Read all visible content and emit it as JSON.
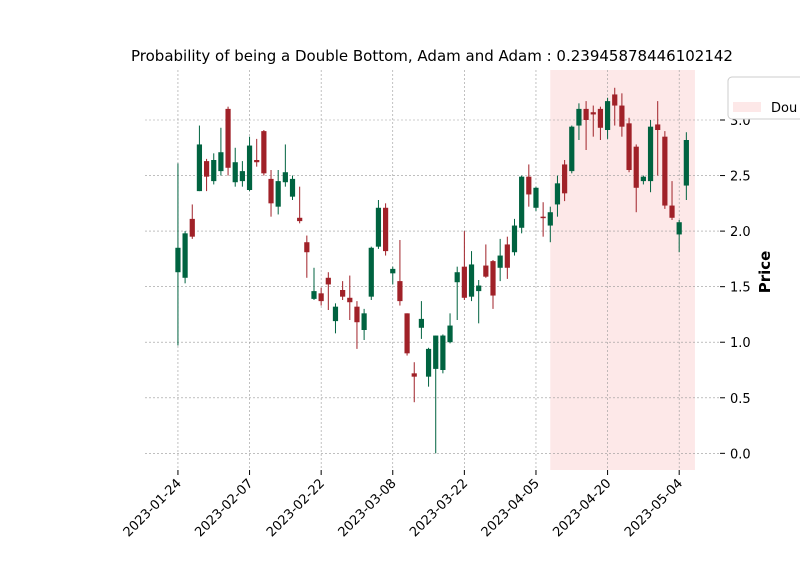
{
  "chart_data": {
    "type": "candlestick",
    "title": "Probability of being a Double Bottom, Adam and Adam : 0.23945878446102142",
    "y_label": "Price",
    "categories": [
      "2023-01-24",
      null,
      null,
      null,
      null,
      null,
      null,
      null,
      null,
      null,
      "2023-02-07",
      null,
      null,
      null,
      null,
      null,
      null,
      null,
      null,
      null,
      "2023-02-22",
      null,
      null,
      null,
      null,
      null,
      null,
      null,
      null,
      null,
      "2023-03-08",
      null,
      null,
      null,
      null,
      null,
      null,
      null,
      null,
      null,
      "2023-03-22",
      null,
      null,
      null,
      null,
      null,
      null,
      null,
      null,
      null,
      "2023-04-05",
      null,
      null,
      null,
      null,
      null,
      null,
      null,
      null,
      null,
      "2023-04-20",
      null,
      null,
      null,
      null,
      null,
      null,
      null,
      null,
      null,
      "2023-05-04",
      null
    ],
    "open": [
      1.63,
      1.58,
      2.11,
      2.36,
      2.63,
      2.45,
      2.54,
      3.1,
      2.44,
      2.45,
      2.37,
      2.64,
      2.9,
      2.47,
      2.22,
      2.44,
      2.31,
      2.12,
      1.9,
      1.39,
      1.44,
      1.58,
      1.19,
      1.47,
      1.4,
      1.32,
      1.11,
      1.41,
      1.86,
      2.21,
      1.62,
      1.55,
      1.26,
      0.72,
      1.13,
      0.69,
      0.76,
      0.75,
      1.0,
      1.54,
      1.68,
      1.41,
      1.46,
      1.69,
      1.73,
      1.67,
      1.88,
      1.81,
      2.03,
      2.49,
      2.21,
      2.13,
      2.05,
      2.24,
      2.6,
      2.54,
      2.95,
      3.1,
      3.07,
      3.1,
      2.91,
      3.23,
      3.13,
      2.97,
      2.76,
      2.45,
      2.45,
      2.96,
      2.85,
      2.23,
      1.97,
      2.41
    ],
    "high": [
      2.61,
      2.0,
      2.24,
      2.95,
      2.65,
      2.7,
      2.93,
      3.12,
      2.75,
      2.63,
      2.85,
      2.83,
      2.91,
      2.55,
      2.55,
      2.78,
      2.5,
      2.4,
      1.96,
      1.67,
      1.49,
      1.63,
      1.35,
      1.55,
      1.6,
      1.37,
      1.3,
      1.86,
      2.28,
      2.25,
      1.68,
      1.92,
      1.26,
      0.82,
      1.37,
      0.95,
      1.06,
      1.07,
      1.26,
      1.68,
      2.0,
      1.82,
      1.56,
      1.88,
      1.74,
      1.93,
      1.95,
      2.11,
      2.5,
      2.6,
      2.4,
      2.26,
      2.22,
      2.5,
      2.64,
      2.95,
      3.15,
      3.17,
      3.13,
      3.12,
      3.2,
      3.29,
      3.24,
      3.02,
      2.78,
      2.5,
      3.0,
      3.17,
      2.9,
      2.45,
      2.1,
      2.89
    ],
    "low": [
      0.97,
      1.53,
      1.93,
      2.36,
      2.36,
      2.42,
      2.5,
      2.5,
      2.4,
      2.4,
      2.36,
      2.58,
      2.5,
      2.13,
      2.15,
      2.4,
      2.28,
      2.07,
      1.58,
      1.38,
      1.33,
      1.29,
      1.08,
      1.38,
      1.2,
      0.94,
      1.02,
      1.38,
      1.84,
      1.78,
      1.52,
      1.33,
      0.88,
      0.46,
      1.03,
      0.6,
      0.0,
      0.72,
      0.99,
      1.2,
      1.38,
      1.37,
      1.17,
      1.58,
      1.3,
      1.55,
      1.57,
      1.78,
      1.98,
      2.22,
      2.18,
      1.95,
      1.9,
      2.13,
      2.27,
      2.52,
      2.82,
      2.73,
      2.85,
      2.82,
      2.83,
      2.95,
      2.85,
      2.53,
      2.17,
      2.42,
      2.35,
      2.5,
      2.2,
      2.1,
      1.81,
      2.28
    ],
    "close": [
      1.85,
      1.98,
      1.95,
      2.78,
      2.49,
      2.64,
      2.71,
      2.57,
      2.62,
      2.54,
      2.77,
      2.62,
      2.52,
      2.25,
      2.45,
      2.53,
      2.47,
      2.09,
      1.81,
      1.46,
      1.37,
      1.52,
      1.32,
      1.41,
      1.36,
      1.18,
      1.26,
      1.85,
      2.21,
      1.82,
      1.66,
      1.37,
      0.9,
      0.69,
      1.21,
      0.94,
      1.06,
      1.06,
      1.15,
      1.63,
      1.4,
      1.7,
      1.51,
      1.59,
      1.42,
      1.78,
      1.67,
      2.05,
      2.49,
      2.33,
      2.39,
      2.12,
      2.17,
      2.43,
      2.34,
      2.94,
      3.1,
      3.0,
      3.05,
      2.93,
      3.17,
      3.13,
      2.94,
      2.55,
      2.39,
      2.49,
      2.94,
      2.91,
      2.23,
      2.12,
      2.08,
      2.82
    ],
    "up_color": "#006340",
    "down_color": "#a02128",
    "highlight": {
      "name": "Dou",
      "range": [
        52.0,
        72.2
      ],
      "color": "#fde8e8"
    },
    "xlim": [
      -4.6,
      75.7
    ],
    "ylim": [
      -0.15,
      3.45
    ],
    "yticks": [
      {
        "value": 0,
        "label": "0.0"
      },
      0.5,
      {
        "value": 1,
        "label": "1.0"
      },
      1.5,
      {
        "value": 2,
        "label": "2.0"
      },
      2.5,
      {
        "value": 3,
        "label": "3.0"
      }
    ],
    "grid": true
  }
}
